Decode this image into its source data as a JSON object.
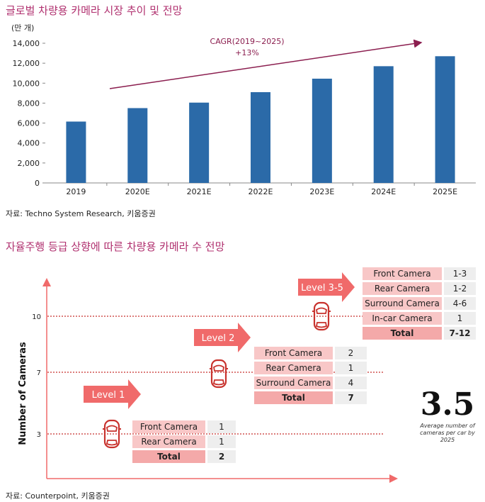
{
  "chart1": {
    "title": "글로벌 차량용 카메라 시장 추이 및 전망",
    "unit": "(만 개)",
    "source": "자료: Techno System Research, 키움증권",
    "annotation_line1": "CAGR(2019~2025)",
    "annotation_line2": "+13%"
  },
  "chart2": {
    "title": "자율주행 등급 상향에 따른 차량용 카메라 수 전망",
    "ylabel": "Number of Cameras",
    "source": "자료: Counterpoint, 키움증권",
    "big_number": "3.5",
    "big_caption": "Average number of cameras per car by 2025",
    "levels": [
      {
        "label": "Level 1",
        "rows": [
          {
            "name": "Front Camera",
            "value": "1"
          },
          {
            "name": "Rear Camera",
            "value": "1"
          }
        ],
        "total": {
          "name": "Total",
          "value": "2"
        }
      },
      {
        "label": "Level 2",
        "rows": [
          {
            "name": "Front Camera",
            "value": "2"
          },
          {
            "name": "Rear Camera",
            "value": "1"
          },
          {
            "name": "Surround Camera",
            "value": "4"
          }
        ],
        "total": {
          "name": "Total",
          "value": "7"
        }
      },
      {
        "label": "Level 3-5",
        "rows": [
          {
            "name": "Front Camera",
            "value": "1-3"
          },
          {
            "name": "Rear Camera",
            "value": "1-2"
          },
          {
            "name": "Surround Camera",
            "value": "4-6"
          },
          {
            "name": "In-car Camera",
            "value": "1"
          }
        ],
        "total": {
          "name": "Total",
          "value": "7-12"
        }
      }
    ]
  },
  "colors": {
    "title": "#b0306f",
    "bar": "#2b6aa8",
    "trend": "#8b1e4f",
    "arrow": "#f06a6a",
    "label_cell": "#f8c7c7",
    "total_cell": "#f4a9a9",
    "value_cell": "#eeeeee",
    "car_icon": "#c8322d"
  },
  "chart_data": [
    {
      "type": "bar",
      "categories": [
        "2019",
        "2020E",
        "2021E",
        "2022E",
        "2023E",
        "2024E",
        "2025E"
      ],
      "values": [
        6150,
        7500,
        8050,
        9100,
        10450,
        11700,
        12700
      ],
      "ylim": [
        0,
        14000
      ],
      "yticks": [
        0,
        2000,
        4000,
        6000,
        8000,
        10000,
        12000,
        14000
      ],
      "ytick_labels": [
        "0",
        "2,000",
        "4,000",
        "6,000",
        "8,000",
        "10,000",
        "12,000",
        "14,000"
      ],
      "grid": false
    },
    {
      "type": "scatter",
      "yticks": [
        3,
        7,
        10
      ],
      "ytick_labels": [
        "3",
        "7",
        "10"
      ],
      "ylabel": "Number of Cameras"
    }
  ]
}
